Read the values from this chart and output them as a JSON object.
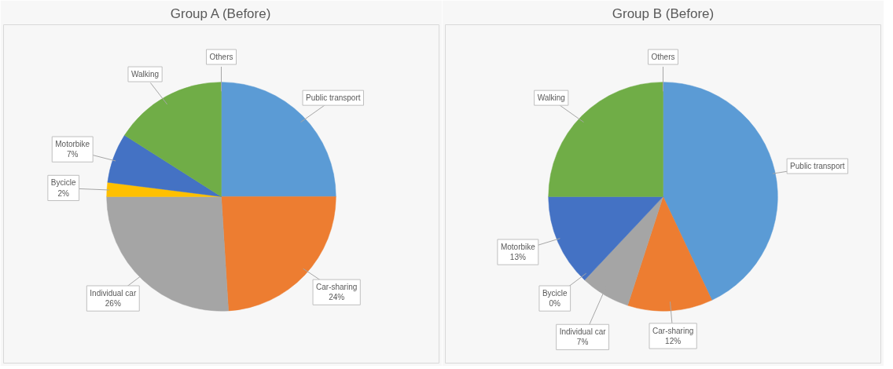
{
  "chart_data": [
    {
      "type": "pie",
      "title": "Group A (Before)",
      "categories": [
        "Public transport",
        "Car-sharing",
        "Individual car",
        "Bycicle",
        "Motorbike",
        "Walking",
        "Others"
      ],
      "values": [
        25,
        24,
        26,
        2,
        7,
        16,
        0
      ],
      "value_labels": [
        null,
        "24%",
        "26%",
        "2%",
        "7%",
        null,
        null
      ],
      "colors": [
        "#5b9bd5",
        "#ed7d31",
        "#a5a5a5",
        "#ffc000",
        "#4472c4",
        "#70ad47",
        "#255e91"
      ]
    },
    {
      "type": "pie",
      "title": "Group B (Before)",
      "categories": [
        "Public transport",
        "Car-sharing",
        "Individual car",
        "Bycicle",
        "Motorbike",
        "Walking",
        "Others"
      ],
      "values": [
        43,
        12,
        7,
        0,
        13,
        25,
        0
      ],
      "value_labels": [
        null,
        "12%",
        "7%",
        "0%",
        "13%",
        null,
        null
      ],
      "colors": [
        "#5b9bd5",
        "#ed7d31",
        "#a5a5a5",
        "#ffc000",
        "#4472c4",
        "#70ad47",
        "#255e91"
      ]
    }
  ]
}
